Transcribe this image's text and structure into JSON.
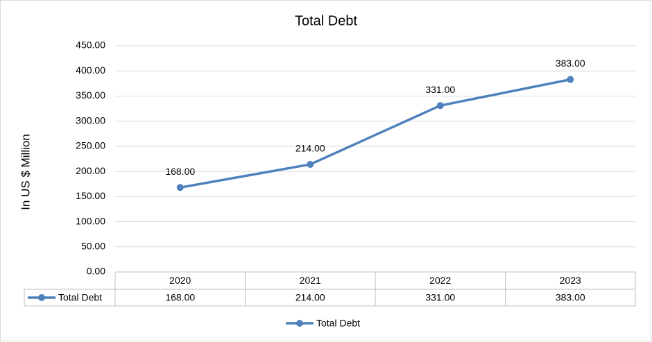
{
  "chart_data": {
    "type": "line",
    "title": "Total Debt",
    "y_label": "In US $ Million",
    "categories": [
      "2020",
      "2021",
      "2022",
      "2023"
    ],
    "series": [
      {
        "name": "Total Debt",
        "color": "#4f81bd",
        "values": [
          168,
          214,
          331,
          383
        ],
        "value_labels": [
          "168.00",
          "214.00",
          "331.00",
          "383.00"
        ]
      }
    ],
    "ylim": [
      0,
      450
    ],
    "yticks": [
      {
        "value": 0,
        "label": "0.00"
      },
      {
        "value": 50,
        "label": "50.00"
      },
      {
        "value": 100,
        "label": "100.00"
      },
      {
        "value": 150,
        "label": "150.00"
      },
      {
        "value": 200,
        "label": "200.00"
      },
      {
        "value": 250,
        "label": "250.00"
      },
      {
        "value": 300,
        "label": "300.00"
      },
      {
        "value": 350,
        "label": "350.00"
      },
      {
        "value": 400,
        "label": "400.00"
      },
      {
        "value": 450,
        "label": "450.00"
      }
    ],
    "grid": true,
    "data_table": true,
    "legend": "bottom"
  }
}
